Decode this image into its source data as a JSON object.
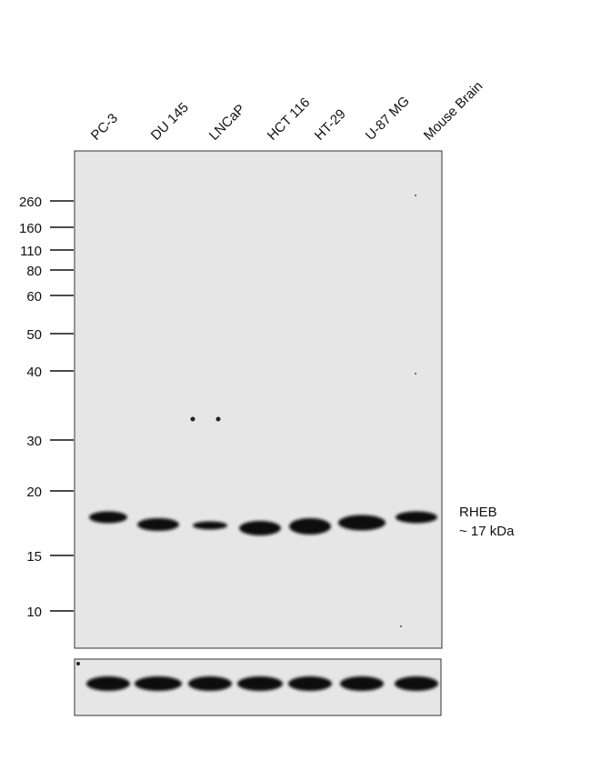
{
  "lanes": [
    "PC-3",
    "DU 145",
    "LNCaP",
    "HCT 116",
    "HT-29",
    "U-87 MG",
    "Mouse Brain"
  ],
  "markers": [
    "260",
    "160",
    "110",
    "80",
    "60",
    "50",
    "40",
    "30",
    "20",
    "15",
    "10"
  ],
  "annotation": {
    "protein": "RHEB",
    "size": "~ 17 kDa"
  }
}
